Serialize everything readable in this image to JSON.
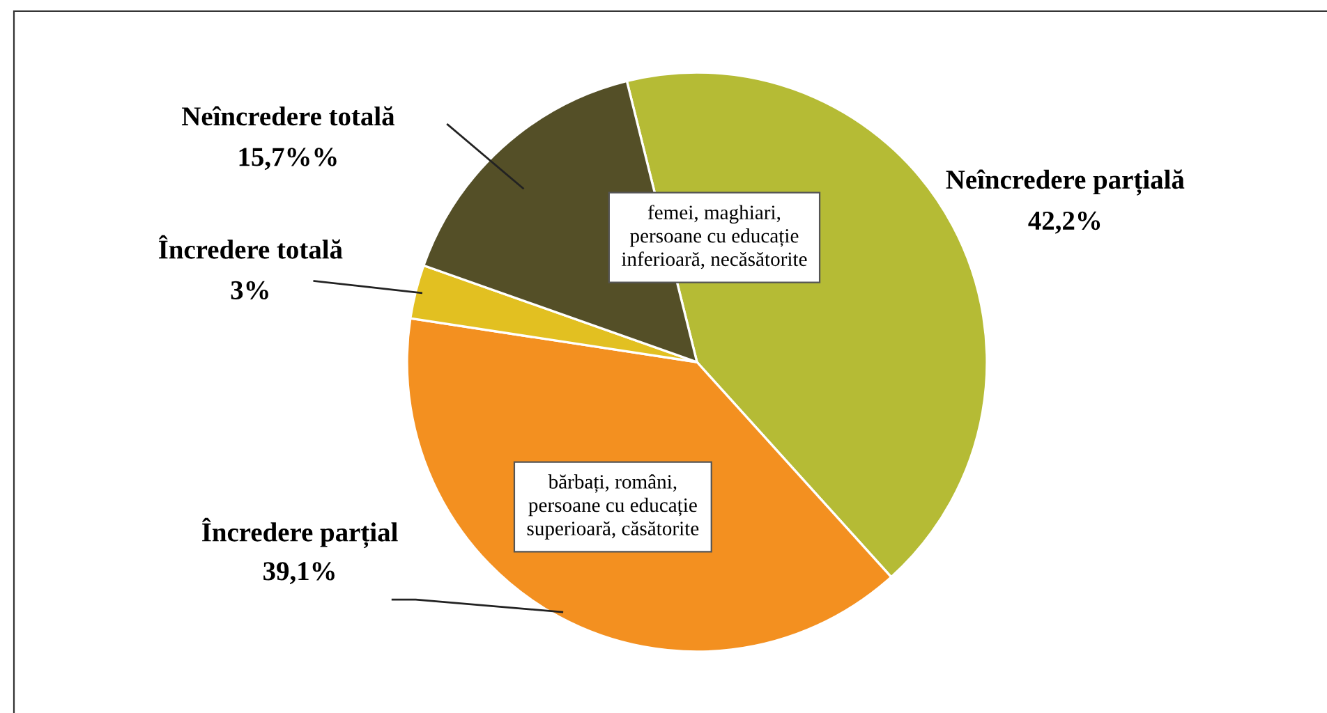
{
  "chart_data": {
    "type": "pie",
    "categories": [
      "Neîncredere parțială",
      "Încredere parțial",
      "Încredere totală",
      "Neîncredere totală"
    ],
    "values": [
      42.2,
      39.1,
      3,
      15.7
    ],
    "value_labels": [
      "42,2%",
      "39,1%",
      "3%",
      "15,7%%"
    ],
    "colors": [
      "#b5bb35",
      "#f39020",
      "#e2c021",
      "#544f27"
    ],
    "annotations": [
      "femei, maghiari,\npersoane cu educație\ninferioară, necăsătorite",
      "bărbați, români,\npersoane cu educație\nsuperioară, căsătorite"
    ],
    "legend": false
  }
}
